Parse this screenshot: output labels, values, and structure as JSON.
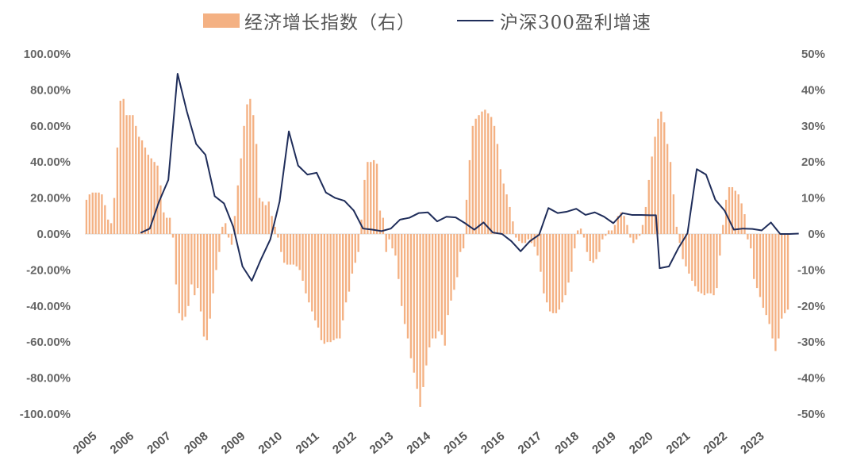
{
  "chart_data": {
    "type": "bar+line",
    "legend": {
      "bar_label": "经济增长指数（右）",
      "line_label": "沪深300盈利增速"
    },
    "colors": {
      "bar": "#F4B183",
      "line": "#1F2D5A",
      "tick_text": "#666666",
      "zero_line": "#D9D9D9"
    },
    "left_axis": {
      "ticks": [
        100,
        80,
        60,
        40,
        20,
        0,
        -20,
        -40,
        -60,
        -80,
        -100
      ],
      "tick_labels": [
        "100.00%",
        "80.00%",
        "60.00%",
        "40.00%",
        "20.00%",
        "0.00%",
        "-20.00%",
        "-40.00%",
        "-60.00%",
        "-80.00%",
        "-100.00%"
      ],
      "ylim": [
        -100,
        100
      ]
    },
    "right_axis": {
      "ticks": [
        50,
        40,
        30,
        20,
        10,
        0,
        -10,
        -20,
        -30,
        -40,
        -50
      ],
      "tick_labels": [
        "50%",
        "40%",
        "30%",
        "20%",
        "10%",
        "0%",
        "-10%",
        "-20%",
        "-30%",
        "-40%",
        "-50%"
      ],
      "ylim": [
        -50,
        50
      ]
    },
    "x_axis": {
      "years": [
        "2005",
        "2006",
        "2007",
        "2008",
        "2009",
        "2010",
        "2011",
        "2012",
        "2013",
        "2014",
        "2015",
        "2016",
        "2017",
        "2018",
        "2019",
        "2020",
        "2021",
        "2022",
        "2023"
      ],
      "xlim": [
        2005.0,
        2023.85
      ]
    },
    "series": [
      {
        "name": "经济增长指数（右）",
        "type": "bar",
        "axis": "left",
        "start": 2005.0,
        "step": 0.08333,
        "values": [
          19,
          22,
          23,
          23,
          23,
          22,
          16,
          8,
          6,
          20,
          48,
          74,
          75,
          66,
          66,
          66,
          60,
          54,
          52,
          48,
          44,
          42,
          40,
          38,
          27,
          12,
          9,
          9,
          -2,
          -28,
          -44,
          -48,
          -46,
          -40,
          -28,
          -34,
          -30,
          -43,
          -57,
          -59,
          -47,
          -33,
          -20,
          -10,
          4,
          6,
          -2,
          -6,
          10,
          27,
          42,
          60,
          72,
          75,
          66,
          50,
          20,
          18,
          16,
          18,
          10,
          4,
          -2,
          -10,
          -16,
          -17,
          -17,
          -17,
          -18,
          -20,
          -26,
          -33,
          -38,
          -43,
          -48,
          -52,
          -59,
          -61,
          -60,
          -60,
          -59,
          -58,
          -58,
          -48,
          -38,
          -32,
          -22,
          -16,
          -10,
          8,
          30,
          40,
          40,
          41,
          39,
          13,
          9,
          -10,
          -3,
          -8,
          -12,
          -25,
          -40,
          -50,
          -58,
          -69,
          -77,
          -86,
          -96,
          -85,
          -73,
          -63,
          -58,
          -58,
          -54,
          -56,
          -62,
          -45,
          -37,
          -31,
          -24,
          -10,
          -8,
          19,
          41,
          60,
          64,
          66,
          68,
          69,
          67,
          65,
          60,
          50,
          36,
          28,
          22,
          15,
          7,
          -2,
          -4,
          -5,
          -5,
          -3,
          -5,
          -7,
          -12,
          -21,
          -33,
          -38,
          -43,
          -44,
          -44,
          -42,
          -38,
          -34,
          -27,
          -21,
          -8,
          2,
          3,
          -2,
          -10,
          -15,
          -16,
          -14,
          -10,
          -3,
          -1,
          2,
          2,
          5,
          10,
          12,
          10,
          5,
          -2,
          -5,
          -3,
          -1,
          5,
          15,
          30,
          43,
          54,
          64,
          68,
          62,
          50,
          40,
          22,
          4,
          -5,
          -14,
          -18,
          -22,
          -26,
          -29,
          -32,
          -33,
          -34,
          -33,
          -33,
          -34,
          -30,
          -12,
          5,
          19,
          26,
          26,
          24,
          22,
          17,
          11,
          -3,
          -8,
          -25,
          -30,
          -35,
          -41,
          -45,
          -50,
          -58,
          -65,
          -58,
          -47,
          -44,
          -42
        ]
      },
      {
        "name": "沪深300盈利增速",
        "type": "line",
        "axis": "right",
        "points": [
          [
            2006.5,
            0.3
          ],
          [
            2006.75,
            1.5
          ],
          [
            2007.0,
            9.0
          ],
          [
            2007.25,
            15.0
          ],
          [
            2007.5,
            44.5
          ],
          [
            2007.75,
            34.0
          ],
          [
            2008.0,
            25.0
          ],
          [
            2008.25,
            22.0
          ],
          [
            2008.5,
            10.5
          ],
          [
            2008.75,
            8.5
          ],
          [
            2009.0,
            2.0
          ],
          [
            2009.25,
            -9.0
          ],
          [
            2009.5,
            -13.0
          ],
          [
            2009.75,
            -7.0
          ],
          [
            2010.0,
            -1.5
          ],
          [
            2010.25,
            9.0
          ],
          [
            2010.5,
            28.5
          ],
          [
            2010.75,
            19.0
          ],
          [
            2011.0,
            16.5
          ],
          [
            2011.25,
            17.0
          ],
          [
            2011.5,
            11.5
          ],
          [
            2011.75,
            10.0
          ],
          [
            2012.0,
            9.2
          ],
          [
            2012.25,
            6.5
          ],
          [
            2012.5,
            1.5
          ],
          [
            2012.75,
            1.2
          ],
          [
            2013.0,
            0.8
          ],
          [
            2013.25,
            1.5
          ],
          [
            2013.5,
            4.0
          ],
          [
            2013.75,
            4.5
          ],
          [
            2014.0,
            5.8
          ],
          [
            2014.25,
            6.0
          ],
          [
            2014.5,
            3.5
          ],
          [
            2014.75,
            4.8
          ],
          [
            2015.0,
            4.6
          ],
          [
            2015.25,
            3.0
          ],
          [
            2015.5,
            1.2
          ],
          [
            2015.75,
            3.2
          ],
          [
            2016.0,
            0.4
          ],
          [
            2016.25,
            0.0
          ],
          [
            2016.5,
            -2.0
          ],
          [
            2016.75,
            -4.8
          ],
          [
            2017.0,
            -2.0
          ],
          [
            2017.25,
            -0.2
          ],
          [
            2017.5,
            7.2
          ],
          [
            2017.75,
            5.8
          ],
          [
            2018.0,
            6.2
          ],
          [
            2018.25,
            7.0
          ],
          [
            2018.5,
            5.3
          ],
          [
            2018.75,
            6.0
          ],
          [
            2019.0,
            4.8
          ],
          [
            2019.25,
            3.0
          ],
          [
            2019.5,
            5.8
          ],
          [
            2019.75,
            5.3
          ],
          [
            2020.0,
            5.3
          ],
          [
            2020.25,
            5.2
          ],
          [
            2020.4,
            5.2
          ],
          [
            2020.5,
            -9.5
          ],
          [
            2020.75,
            -9.0
          ],
          [
            2021.0,
            -4.0
          ],
          [
            2021.25,
            0.2
          ],
          [
            2021.5,
            18.0
          ],
          [
            2021.75,
            16.5
          ],
          [
            2022.0,
            9.5
          ],
          [
            2022.25,
            6.5
          ],
          [
            2022.5,
            1.2
          ],
          [
            2022.75,
            1.5
          ],
          [
            2023.0,
            1.4
          ],
          [
            2023.25,
            1.0
          ],
          [
            2023.5,
            3.2
          ],
          [
            2023.75,
            0.0
          ],
          [
            2024.0,
            0.0
          ],
          [
            2024.25,
            0.1
          ]
        ]
      }
    ]
  }
}
